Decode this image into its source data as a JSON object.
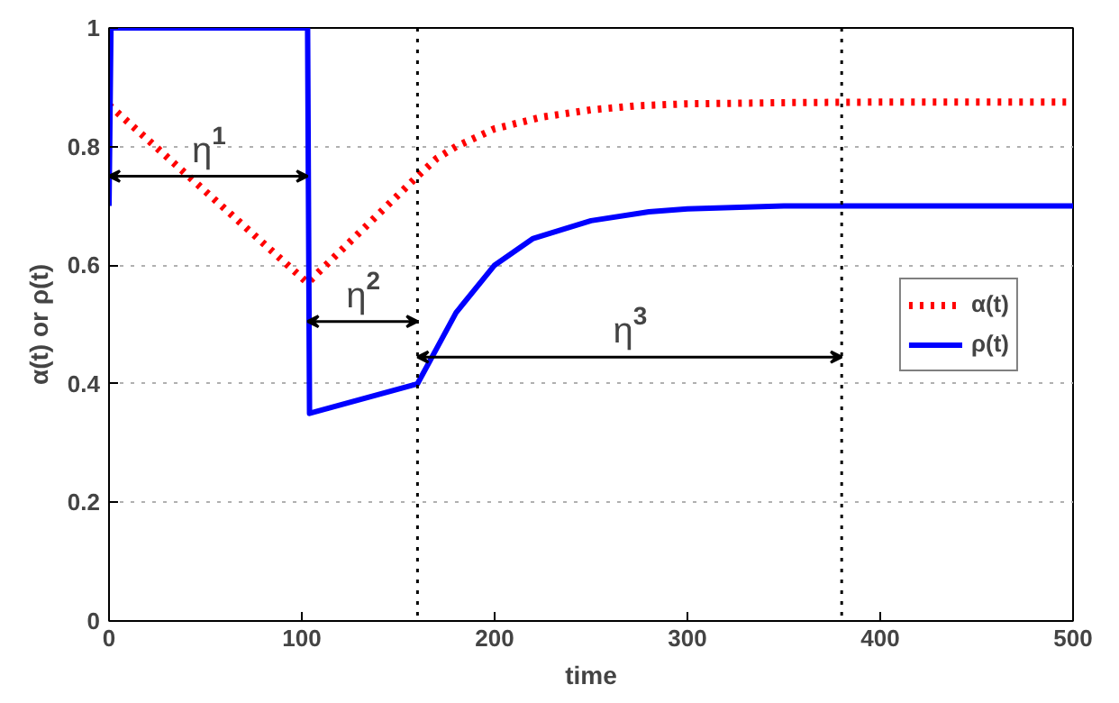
{
  "chart_data": {
    "type": "line",
    "xlabel": "time",
    "ylabel": "α(t) or ρ(t)",
    "xlim": [
      0,
      500
    ],
    "ylim": [
      0,
      1
    ],
    "xticks": [
      0,
      100,
      200,
      300,
      400,
      500
    ],
    "yticks": [
      0,
      0.2,
      0.4,
      0.6,
      0.8,
      1
    ],
    "grid": "y",
    "legend": "right",
    "series": [
      {
        "name": "α(t)",
        "color": "#ff0000",
        "line_style": "dotted",
        "x": [
          0,
          103,
          160,
          170,
          180,
          200,
          225,
          250,
          275,
          300,
          350,
          400,
          500
        ],
        "values": [
          0.87,
          0.57,
          0.75,
          0.78,
          0.8,
          0.83,
          0.85,
          0.862,
          0.869,
          0.872,
          0.874,
          0.875,
          0.875
        ]
      },
      {
        "name": "ρ(t)",
        "color": "#0000ff",
        "line_style": "solid",
        "x": [
          0,
          1,
          103,
          104,
          160,
          170,
          180,
          200,
          220,
          250,
          280,
          300,
          350,
          500
        ],
        "values": [
          0.7,
          1,
          1,
          0.35,
          0.4,
          0.46,
          0.52,
          0.6,
          0.645,
          0.675,
          0.69,
          0.695,
          0.7,
          0.7
        ]
      }
    ],
    "ref_lines": [
      {
        "axis": "x",
        "value": 160,
        "line_style": "dotted"
      },
      {
        "axis": "x",
        "value": 380,
        "line_style": "dotted"
      }
    ],
    "annotations": [
      "η$^{1}$",
      "η$^{2}$",
      "η$^{3}$"
    ]
  }
}
